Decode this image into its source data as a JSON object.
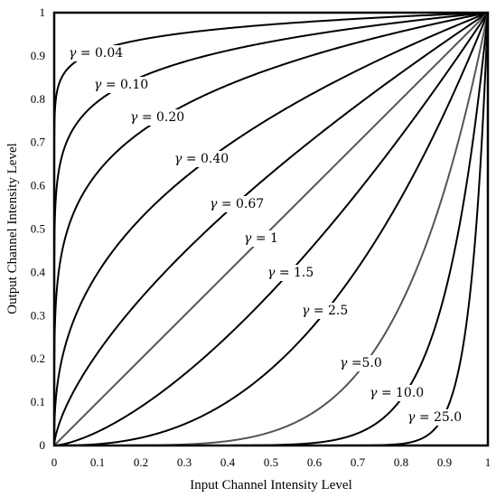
{
  "chart_data": {
    "type": "line",
    "title": "",
    "xlabel": "Input Channel Intensity Level",
    "ylabel": "Output Channel Intensity Level",
    "xlim": [
      0,
      1
    ],
    "ylim": [
      0,
      1
    ],
    "grid": false,
    "legend": "none",
    "x_ticks": [
      "0",
      "0.1",
      "0.2",
      "0.3",
      "0.4",
      "0.5",
      "0.6",
      "0.7",
      "0.8",
      "0.9",
      "1"
    ],
    "y_ticks": [
      "0",
      "0.1",
      "0.2",
      "0.3",
      "0.4",
      "0.5",
      "0.6",
      "0.7",
      "0.8",
      "0.9",
      "1"
    ],
    "function": "y = x^gamma",
    "series": [
      {
        "gamma": 0.04,
        "label": "γ = 0.04",
        "color": "#000000"
      },
      {
        "gamma": 0.1,
        "label": "γ = 0.10",
        "color": "#000000"
      },
      {
        "gamma": 0.2,
        "label": "γ = 0.20",
        "color": "#000000"
      },
      {
        "gamma": 0.4,
        "label": "γ = 0.40",
        "color": "#000000"
      },
      {
        "gamma": 0.67,
        "label": "γ = 0.67",
        "color": "#000000"
      },
      {
        "gamma": 1,
        "label": "γ = 1",
        "color": "#555555"
      },
      {
        "gamma": 1.5,
        "label": "γ = 1.5",
        "color": "#000000"
      },
      {
        "gamma": 2.5,
        "label": "γ = 2.5",
        "color": "#000000"
      },
      {
        "gamma": 5.0,
        "label": "γ =5.0",
        "color": "#555555"
      },
      {
        "gamma": 10.0,
        "label": "γ = 10.0",
        "color": "#000000"
      },
      {
        "gamma": 25.0,
        "label": "γ = 25.0",
        "color": "#000000"
      }
    ]
  }
}
